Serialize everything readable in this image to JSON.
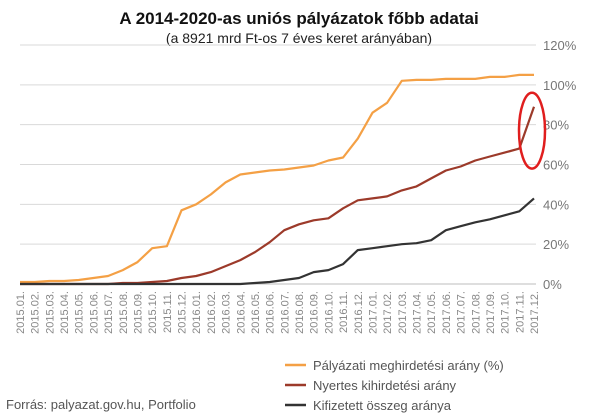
{
  "chart_data": {
    "type": "line",
    "title": "A 2014-2020-as uniós pályázatok főbb adatai",
    "subtitle": "(a 8921 mrd Ft-os 7 éves keret arányában)",
    "source": "Forrás: palyazat.gov.hu, Portfolio",
    "ylim": [
      0,
      120
    ],
    "yticks": [
      0,
      20,
      40,
      60,
      80,
      100,
      120
    ],
    "ytick_labels": [
      "0%",
      "20%",
      "40%",
      "60%",
      "80%",
      "100%",
      "120%"
    ],
    "grid": true,
    "legend_position": "bottom-right",
    "categories": [
      "2015.01.",
      "2015.02.",
      "2015.03.",
      "2015.04.",
      "2015.05.",
      "2015.06.",
      "2015.07.",
      "2015.08.",
      "2015.09.",
      "2015.10.",
      "2015.11.",
      "2015.12.",
      "2016.01.",
      "2016.02.",
      "2016.03.",
      "2016.04.",
      "2016.05.",
      "2016.06.",
      "2016.07.",
      "2016.08.",
      "2016.09.",
      "2016.10.",
      "2016.11.",
      "2016.12.",
      "2017.01.",
      "2017.02.",
      "2017.03.",
      "2017.04.",
      "2017.05.",
      "2017.06.",
      "2017.07.",
      "2017.08.",
      "2017.09.",
      "2017.10.",
      "2017.11.",
      "2017.12."
    ],
    "series": [
      {
        "name": "Pályázati meghirdetési arány (%)",
        "color": "#f4a045",
        "values": [
          1,
          1,
          1.5,
          1.5,
          2,
          3,
          4,
          7,
          11,
          18,
          19,
          37,
          40,
          45,
          51,
          55,
          56,
          57,
          57.5,
          58.5,
          59.5,
          62,
          63.5,
          73,
          86,
          91,
          102,
          102.5,
          102.5,
          103,
          103,
          103,
          104,
          104,
          105,
          105
        ]
      },
      {
        "name": "Nyertes kihirdetési arány",
        "color": "#9c3a2a",
        "values": [
          0,
          0,
          0,
          0,
          0,
          0,
          0,
          0.5,
          0.5,
          1,
          1.5,
          3,
          4,
          6,
          9,
          12,
          16,
          21,
          27,
          30,
          32,
          33,
          38,
          42,
          43,
          44,
          47,
          49,
          53,
          57,
          59,
          62,
          64,
          66,
          68,
          89
        ]
      },
      {
        "name": "Kifizetett összeg aránya",
        "color": "#333333",
        "values": [
          0,
          0,
          0,
          0,
          0,
          0,
          0,
          0,
          0,
          0,
          0,
          0,
          0,
          0,
          0,
          0,
          0.5,
          1,
          2,
          3,
          6,
          7,
          10,
          17,
          18,
          19,
          20,
          20.5,
          22,
          27,
          29,
          31,
          32.5,
          34.5,
          36.5,
          43
        ]
      }
    ],
    "annotation": {
      "type": "ellipse",
      "color": "#e01e1e",
      "x": "2017.12.",
      "y_range": [
        68,
        90
      ]
    }
  }
}
